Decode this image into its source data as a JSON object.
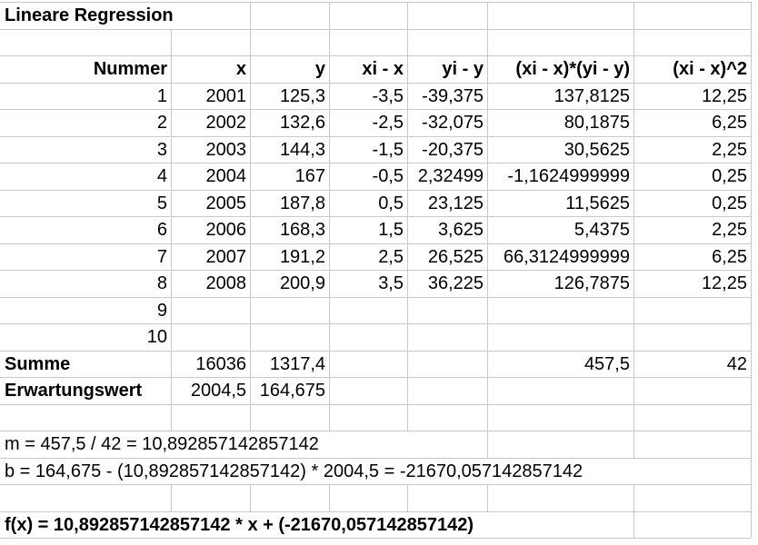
{
  "title": "Lineare Regression",
  "table": {
    "header": [
      "Nummer",
      "x",
      "y",
      "xi - x",
      "yi - y",
      "(xi - x)*(yi - y)",
      "(xi - x)^2"
    ],
    "rows": [
      [
        "1",
        "2001",
        "125,3",
        "-3,5",
        "-39,375",
        "137,8125",
        "12,25"
      ],
      [
        "2",
        "2002",
        "132,6",
        "-2,5",
        "-32,075",
        "80,1875",
        "6,25"
      ],
      [
        "3",
        "2003",
        "144,3",
        "-1,5",
        "-20,375",
        "30,5625",
        "2,25"
      ],
      [
        "4",
        "2004",
        "167",
        "-0,5",
        "2,32499",
        "-1,1624999999",
        "0,25"
      ],
      [
        "5",
        "2005",
        "187,8",
        "0,5",
        "23,125",
        "11,5625",
        "0,25"
      ],
      [
        "6",
        "2006",
        "168,3",
        "1,5",
        "3,625",
        "5,4375",
        "2,25"
      ],
      [
        "7",
        "2007",
        "191,2",
        "2,5",
        "26,525",
        "66,3124999999",
        "6,25"
      ],
      [
        "8",
        "2008",
        "200,9",
        "3,5",
        "36,225",
        "126,7875",
        "12,25"
      ],
      [
        "9"
      ],
      [
        "10"
      ]
    ],
    "summary": [
      [
        "Summe",
        "16036",
        "1317,4",
        null,
        null,
        "457,5",
        "42"
      ],
      [
        "Erwartungswert",
        "2004,5",
        "164,675"
      ]
    ]
  },
  "formulas": {
    "m": "m = 457,5 / 42 = 10,892857142857142",
    "b": "b = 164,675 - (10,892857142857142) * 2004,5 = -21670,057142857142",
    "f": "f(x) = 10,892857142857142 * x + (-21670,057142857142)"
  }
}
